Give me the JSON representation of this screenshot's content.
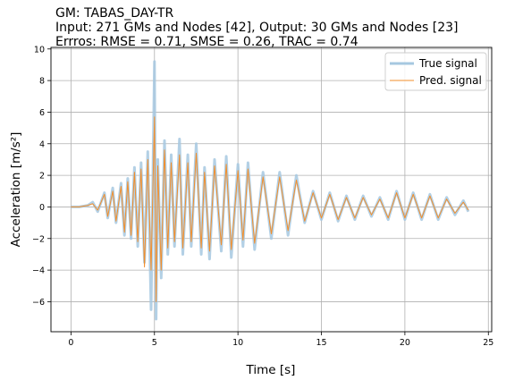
{
  "chart_data": {
    "type": "line",
    "title_lines": [
      "GM: TABAS_DAY-TR",
      "Input: 271 GMs and Nodes [42], Output: 30 GMs and Nodes [23]",
      "Errros: RMSE = 0.71, SMSE = 0.26, TRAC = 0.74"
    ],
    "xlabel": "Time [s]",
    "ylabel": "Acceleration [m/s²]",
    "xlim": [
      -1.2,
      25.2
    ],
    "ylim": [
      -7.9,
      10.1
    ],
    "xticks": [
      0,
      5,
      10,
      15,
      20,
      25
    ],
    "yticks": [
      -6,
      -4,
      -2,
      0,
      2,
      4,
      6,
      8,
      10
    ],
    "grid": true,
    "legend_position": "top-right",
    "series": [
      {
        "name": "True signal",
        "color": "#a6c8e0",
        "points": [
          [
            0.0,
            0.0
          ],
          [
            0.5,
            0.0
          ],
          [
            1.0,
            0.1
          ],
          [
            1.3,
            0.3
          ],
          [
            1.6,
            -0.3
          ],
          [
            2.0,
            0.9
          ],
          [
            2.2,
            -0.7
          ],
          [
            2.5,
            1.2
          ],
          [
            2.7,
            -1.0
          ],
          [
            3.0,
            1.5
          ],
          [
            3.2,
            -1.8
          ],
          [
            3.4,
            1.8
          ],
          [
            3.6,
            -2.0
          ],
          [
            3.8,
            2.5
          ],
          [
            4.0,
            -2.5
          ],
          [
            4.2,
            2.8
          ],
          [
            4.4,
            -3.5
          ],
          [
            4.6,
            3.5
          ],
          [
            4.8,
            -6.5
          ],
          [
            5.0,
            9.2
          ],
          [
            5.1,
            -7.1
          ],
          [
            5.2,
            3.0
          ],
          [
            5.4,
            -4.5
          ],
          [
            5.6,
            4.2
          ],
          [
            5.8,
            -3.0
          ],
          [
            6.0,
            3.3
          ],
          [
            6.2,
            -2.5
          ],
          [
            6.5,
            4.3
          ],
          [
            6.7,
            -3.0
          ],
          [
            7.0,
            3.3
          ],
          [
            7.2,
            -2.5
          ],
          [
            7.5,
            4.0
          ],
          [
            7.8,
            -3.0
          ],
          [
            8.0,
            2.5
          ],
          [
            8.3,
            -3.3
          ],
          [
            8.6,
            3.0
          ],
          [
            9.0,
            -2.8
          ],
          [
            9.3,
            3.2
          ],
          [
            9.6,
            -3.2
          ],
          [
            10.0,
            2.7
          ],
          [
            10.3,
            -2.5
          ],
          [
            10.6,
            2.8
          ],
          [
            11.0,
            -2.7
          ],
          [
            11.5,
            2.2
          ],
          [
            12.0,
            -2.0
          ],
          [
            12.5,
            2.2
          ],
          [
            13.0,
            -1.8
          ],
          [
            13.5,
            2.0
          ],
          [
            14.0,
            -1.0
          ],
          [
            14.5,
            1.0
          ],
          [
            15.0,
            -0.8
          ],
          [
            15.5,
            0.9
          ],
          [
            16.0,
            -0.9
          ],
          [
            16.5,
            0.7
          ],
          [
            17.0,
            -0.8
          ],
          [
            17.5,
            0.7
          ],
          [
            18.0,
            -0.6
          ],
          [
            18.5,
            0.6
          ],
          [
            19.0,
            -0.8
          ],
          [
            19.5,
            1.0
          ],
          [
            20.0,
            -0.8
          ],
          [
            20.5,
            0.9
          ],
          [
            21.0,
            -0.8
          ],
          [
            21.5,
            0.8
          ],
          [
            22.0,
            -0.8
          ],
          [
            22.5,
            0.6
          ],
          [
            23.0,
            -0.5
          ],
          [
            23.5,
            0.4
          ],
          [
            23.8,
            -0.3
          ]
        ]
      },
      {
        "name": "Pred. signal",
        "color": "#f28e2b",
        "points": [
          [
            0.0,
            0.0
          ],
          [
            0.5,
            0.0
          ],
          [
            1.0,
            0.1
          ],
          [
            1.3,
            0.2
          ],
          [
            1.6,
            -0.2
          ],
          [
            2.0,
            0.8
          ],
          [
            2.2,
            -0.6
          ],
          [
            2.5,
            1.0
          ],
          [
            2.7,
            -0.9
          ],
          [
            3.0,
            1.3
          ],
          [
            3.2,
            -1.6
          ],
          [
            3.4,
            1.6
          ],
          [
            3.6,
            -1.8
          ],
          [
            3.8,
            2.2
          ],
          [
            4.0,
            -2.2
          ],
          [
            4.2,
            2.4
          ],
          [
            4.4,
            -3.8
          ],
          [
            4.6,
            3.0
          ],
          [
            4.8,
            -4.0
          ],
          [
            5.0,
            5.7
          ],
          [
            5.1,
            -6.0
          ],
          [
            5.2,
            2.6
          ],
          [
            5.4,
            -4.0
          ],
          [
            5.6,
            3.6
          ],
          [
            5.8,
            -2.6
          ],
          [
            6.0,
            2.8
          ],
          [
            6.2,
            -2.2
          ],
          [
            6.5,
            3.3
          ],
          [
            6.7,
            -2.6
          ],
          [
            7.0,
            2.8
          ],
          [
            7.2,
            -2.2
          ],
          [
            7.5,
            3.4
          ],
          [
            7.8,
            -2.6
          ],
          [
            8.0,
            2.2
          ],
          [
            8.3,
            -2.8
          ],
          [
            8.6,
            2.6
          ],
          [
            9.0,
            -2.4
          ],
          [
            9.3,
            2.7
          ],
          [
            9.6,
            -2.7
          ],
          [
            10.0,
            2.3
          ],
          [
            10.3,
            -2.1
          ],
          [
            10.6,
            2.4
          ],
          [
            11.0,
            -2.3
          ],
          [
            11.5,
            1.9
          ],
          [
            12.0,
            -1.7
          ],
          [
            12.5,
            1.9
          ],
          [
            13.0,
            -1.5
          ],
          [
            13.5,
            1.7
          ],
          [
            14.0,
            -0.9
          ],
          [
            14.5,
            0.9
          ],
          [
            15.0,
            -0.7
          ],
          [
            15.5,
            0.8
          ],
          [
            16.0,
            -0.8
          ],
          [
            16.5,
            0.6
          ],
          [
            17.0,
            -0.7
          ],
          [
            17.5,
            0.6
          ],
          [
            18.0,
            -0.5
          ],
          [
            18.5,
            0.5
          ],
          [
            19.0,
            -0.7
          ],
          [
            19.5,
            0.9
          ],
          [
            20.0,
            -0.7
          ],
          [
            20.5,
            0.8
          ],
          [
            21.0,
            -0.7
          ],
          [
            21.5,
            0.7
          ],
          [
            22.0,
            -0.7
          ],
          [
            22.5,
            0.5
          ],
          [
            23.0,
            -0.4
          ],
          [
            23.5,
            0.3
          ],
          [
            23.8,
            -0.2
          ]
        ]
      }
    ]
  }
}
